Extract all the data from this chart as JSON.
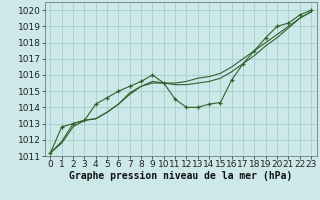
{
  "xlabel": "Graphe pression niveau de la mer (hPa)",
  "background_color": "#cce8e8",
  "grid_color": "#aacccc",
  "line_color": "#2d622d",
  "marker_color": "#2d622d",
  "ylim": [
    1011,
    1020.5
  ],
  "xlim": [
    -0.5,
    23.5
  ],
  "yticks": [
    1011,
    1012,
    1013,
    1014,
    1015,
    1016,
    1017,
    1018,
    1019,
    1020
  ],
  "xticks": [
    0,
    1,
    2,
    3,
    4,
    5,
    6,
    7,
    8,
    9,
    10,
    11,
    12,
    13,
    14,
    15,
    16,
    17,
    18,
    19,
    20,
    21,
    22,
    23
  ],
  "series": [
    [
      1011.2,
      1011.8,
      1012.8,
      1013.2,
      1013.3,
      1013.7,
      1014.2,
      1014.8,
      1015.3,
      1015.5,
      1015.5,
      1015.5,
      1015.6,
      1015.8,
      1015.9,
      1016.1,
      1016.5,
      1017.0,
      1017.5,
      1018.0,
      1018.5,
      1019.0,
      1019.5,
      1019.9
    ],
    [
      1011.2,
      1011.9,
      1013.0,
      1013.2,
      1013.3,
      1013.7,
      1014.2,
      1014.9,
      1015.3,
      1015.6,
      1015.5,
      1015.4,
      1015.4,
      1015.5,
      1015.6,
      1015.8,
      1016.2,
      1016.7,
      1017.2,
      1017.8,
      1018.3,
      1018.9,
      1019.5,
      1019.9
    ],
    [
      1011.2,
      1012.8,
      1013.0,
      1013.2,
      1014.2,
      1014.6,
      1015.0,
      1015.3,
      1015.6,
      1016.0,
      1015.5,
      1014.5,
      1014.0,
      1014.0,
      1014.2,
      1014.3,
      1015.7,
      1016.7,
      1017.5,
      1018.3,
      1019.0,
      1019.2,
      1019.7,
      1020.0
    ]
  ],
  "font_size_label": 7,
  "font_size_tick": 6.5
}
